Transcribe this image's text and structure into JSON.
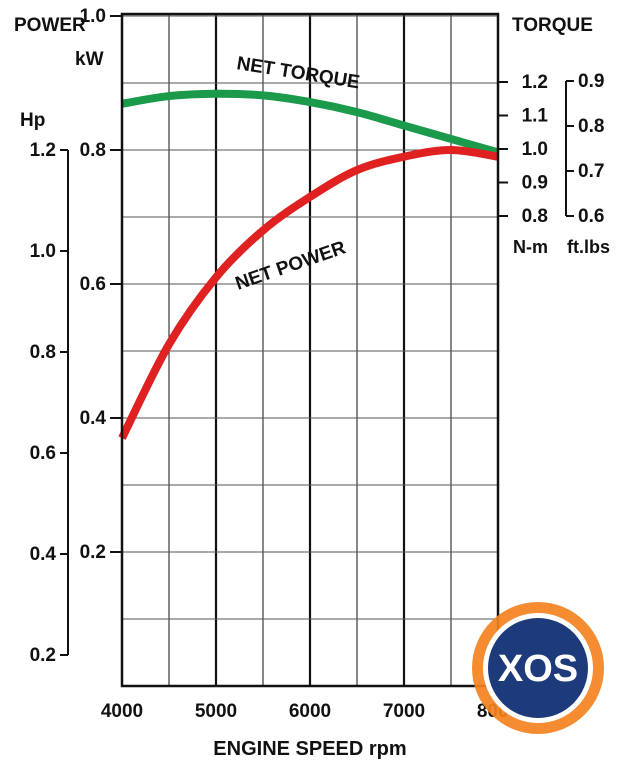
{
  "chart_data": {
    "type": "line",
    "xlabel": "ENGINE SPEED rpm",
    "x_ticks": [
      "4000",
      "5000",
      "6000",
      "7000",
      "8000"
    ],
    "xlim": [
      4000,
      8000
    ],
    "left_axis_title": "POWER",
    "kw_axis": {
      "unit": "kW",
      "ticks": [
        "0.2",
        "0.4",
        "0.6",
        "0.8",
        "1.0"
      ],
      "range": [
        0,
        1.0
      ]
    },
    "hp_axis": {
      "unit": "Hp",
      "ticks": [
        "0.2",
        "0.4",
        "0.6",
        "0.8",
        "1.0",
        "1.2"
      ],
      "range": [
        0.2,
        1.2
      ]
    },
    "right_axis_title": "TORQUE",
    "nm_axis": {
      "unit": "N-m",
      "ticks": [
        "0.8",
        "0.9",
        "1.0",
        "1.1",
        "1.2"
      ],
      "range": [
        0.8,
        1.2
      ]
    },
    "ftlbs_axis": {
      "unit": "ft.lbs",
      "ticks": [
        "0.6",
        "0.7",
        "0.8",
        "0.9"
      ],
      "range": [
        0.6,
        0.9
      ]
    },
    "grid": true,
    "series": [
      {
        "name": "NET TORQUE",
        "axis": "N-m",
        "color": "#1a9a4a",
        "x": [
          4000,
          4500,
          5000,
          5500,
          6000,
          6500,
          7000,
          7500,
          8000
        ],
        "y": [
          1.135,
          1.158,
          1.165,
          1.16,
          1.14,
          1.11,
          1.07,
          1.03,
          0.99
        ]
      },
      {
        "name": "NET POWER",
        "axis": "kW",
        "color": "#e02121",
        "x": [
          4000,
          4500,
          5000,
          5500,
          6000,
          6500,
          7000,
          7500,
          8000
        ],
        "y": [
          0.37,
          0.51,
          0.61,
          0.68,
          0.73,
          0.77,
          0.79,
          0.8,
          0.79
        ]
      }
    ]
  },
  "watermark": {
    "text": "XOS",
    "ring_color": "#f5821f",
    "disc_color": "#1d3a7a"
  }
}
